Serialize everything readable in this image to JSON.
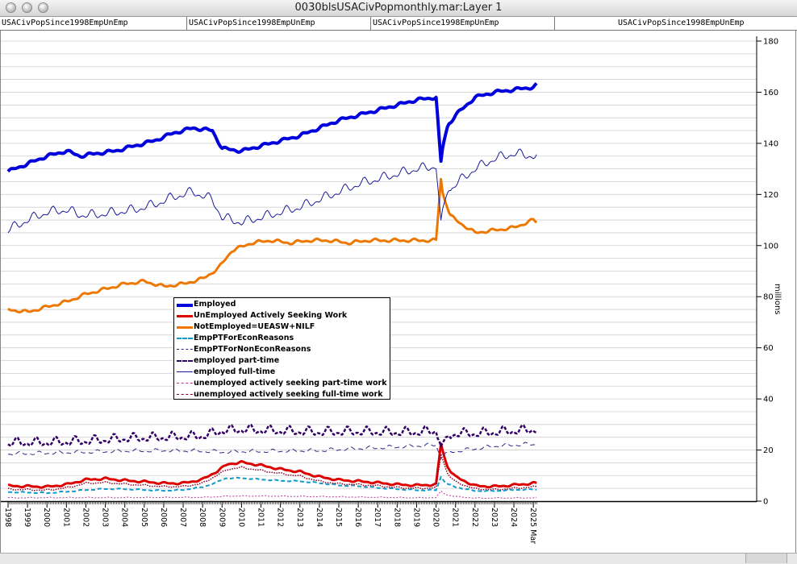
{
  "window": {
    "title": "0030blsUSACivPopmonthly.mar:Layer 1"
  },
  "tabs": [
    "USACivPopSince1998EmpUnEmp",
    "USACivPopSince1998EmpUnEmp",
    "USACivPopSince1998EmpUnEmp",
    "USACivPopSince1998EmpUnEmp"
  ],
  "chart_data": {
    "type": "line",
    "ylabel": "millions",
    "ylim": [
      0,
      180
    ],
    "yticks": [
      0,
      20,
      40,
      60,
      80,
      100,
      120,
      140,
      160,
      180
    ],
    "xlim": [
      1998.0,
      2025.2
    ],
    "xtick_labels": [
      "1998",
      "1999",
      "2000",
      "2001",
      "2002",
      "2003",
      "2004",
      "2005",
      "2006",
      "2007",
      "2008",
      "2009",
      "2010",
      "2011",
      "2012",
      "2013",
      "2014",
      "2015",
      "2016",
      "2017",
      "2018",
      "2019",
      "2020",
      "2021",
      "2022",
      "2023",
      "2024",
      "2025 Mar"
    ],
    "grid": true,
    "legend_position": "center-left",
    "series": [
      {
        "name": "Employed",
        "color": "#0000dd",
        "width": 4,
        "dash": "",
        "seasonal": 0.6,
        "x": [
          1998.0,
          1999.0,
          2000.0,
          2001.0,
          2001.7,
          2002.5,
          2003.5,
          2004.5,
          2005.5,
          2006.5,
          2007.5,
          2008.5,
          2009.0,
          2010.0,
          2011.0,
          2012.0,
          2013.0,
          2014.0,
          2015.0,
          2016.0,
          2017.0,
          2018.0,
          2019.0,
          2020.0,
          2020.25,
          2020.35,
          2020.6,
          2021.0,
          2022.0,
          2023.0,
          2024.0,
          2025.0,
          2025.2
        ],
        "y": [
          129,
          132,
          135,
          137,
          135,
          136,
          137,
          139,
          141,
          144,
          146,
          145,
          138,
          137,
          139,
          141,
          143,
          146,
          149,
          151,
          153,
          155,
          157,
          158,
          133,
          139,
          147,
          151,
          158,
          160,
          161,
          162,
          163
        ]
      },
      {
        "name": "UnEmployed Actively Seeking Work",
        "color": "#dd0000",
        "width": 3,
        "dash": "",
        "seasonal": 0.4,
        "x": [
          1998.0,
          2000.0,
          2001.0,
          2002.0,
          2003.0,
          2004.0,
          2005.0,
          2006.0,
          2007.0,
          2008.0,
          2008.7,
          2009.3,
          2010.0,
          2011.0,
          2012.0,
          2013.0,
          2014.0,
          2015.0,
          2016.0,
          2017.0,
          2018.0,
          2019.0,
          2020.0,
          2020.25,
          2020.4,
          2020.6,
          2021.0,
          2022.0,
          2023.0,
          2024.0,
          2025.0,
          2025.2
        ],
        "y": [
          6,
          5.6,
          6.5,
          8.4,
          8.8,
          8.1,
          7.6,
          7,
          7,
          8.5,
          11.5,
          14.5,
          15.2,
          14,
          12.5,
          11.5,
          9.5,
          8.3,
          7.8,
          7.2,
          6.5,
          6.2,
          6.5,
          22.5,
          18,
          13,
          9.5,
          6,
          5.7,
          6.3,
          7,
          7
        ]
      },
      {
        "name": "NotEmployed=UEASW+NILF",
        "color": "#ee7700",
        "width": 3,
        "dash": "",
        "seasonal": 0.6,
        "x": [
          1998.0,
          1999.0,
          2000.0,
          2001.0,
          2002.0,
          2003.0,
          2004.0,
          2005.0,
          2006.0,
          2007.0,
          2008.0,
          2008.8,
          2009.5,
          2010.5,
          2011.5,
          2012.5,
          2013.5,
          2014.5,
          2015.5,
          2016.5,
          2017.5,
          2018.5,
          2019.5,
          2020.0,
          2020.25,
          2020.35,
          2020.7,
          2021.0,
          2022.0,
          2023.0,
          2024.0,
          2025.0,
          2025.2
        ],
        "y": [
          75,
          74,
          76,
          78,
          81,
          83,
          85,
          86,
          84,
          85,
          87,
          91,
          98,
          101,
          102,
          101,
          102,
          102,
          101,
          102,
          102,
          102,
          102,
          102,
          126,
          120,
          112,
          110,
          105,
          106,
          107,
          110,
          109
        ]
      },
      {
        "name": "EmpPTForEconReasons",
        "color": "#1199cc",
        "width": 2,
        "dash": "5,3",
        "seasonal": 0.2,
        "x": [
          1998.0,
          2000.0,
          2001.0,
          2002.0,
          2003.0,
          2004.0,
          2005.0,
          2006.0,
          2007.0,
          2008.0,
          2008.6,
          2009.2,
          2010.0,
          2011.0,
          2012.0,
          2013.0,
          2014.0,
          2015.0,
          2016.0,
          2017.0,
          2018.0,
          2019.0,
          2020.0,
          2020.25,
          2020.5,
          2021.0,
          2022.0,
          2023.0,
          2024.0,
          2025.0,
          2025.2
        ],
        "y": [
          3.6,
          3.2,
          3.7,
          4.4,
          4.8,
          4.7,
          4.4,
          4.1,
          4.4,
          5.5,
          7,
          9,
          9,
          8.5,
          8,
          7.8,
          7.1,
          6.2,
          5.9,
          5.2,
          4.7,
          4.3,
          4.3,
          9.5,
          7,
          5.5,
          4,
          4,
          4.4,
          4.6,
          4.5
        ]
      },
      {
        "name": "EmpPTForNonEconReasons",
        "color": "#2a2a88",
        "width": 1,
        "dash": "6,4",
        "seasonal": 0.7,
        "x": [
          1998.0,
          2000.0,
          2002.0,
          2004.0,
          2006.0,
          2008.0,
          2009.0,
          2010.0,
          2012.0,
          2014.0,
          2016.0,
          2018.0,
          2019.0,
          2020.0,
          2020.25,
          2020.5,
          2021.0,
          2022.0,
          2023.0,
          2024.0,
          2025.0,
          2025.2
        ],
        "y": [
          18.5,
          18.8,
          19.2,
          19.6,
          19.8,
          19.6,
          19.2,
          19.4,
          19.6,
          19.8,
          20.6,
          21.2,
          21.6,
          22,
          16.5,
          19,
          19.5,
          20.5,
          21.5,
          22,
          22.3,
          22
        ]
      },
      {
        "name": "employed part-time",
        "color": "#330066",
        "width": 2.5,
        "dash": "4,2",
        "seasonal": 1.8,
        "x": [
          1998.0,
          2000.0,
          2002.0,
          2004.0,
          2006.0,
          2008.0,
          2009.0,
          2010.0,
          2012.0,
          2014.0,
          2016.0,
          2018.0,
          2019.0,
          2020.0,
          2020.25,
          2020.5,
          2021.0,
          2022.0,
          2023.0,
          2024.0,
          2025.0,
          2025.2
        ],
        "y": [
          22.8,
          23,
          23.5,
          24.5,
          25,
          25.5,
          27.5,
          28,
          27.5,
          27,
          27.2,
          27,
          27,
          27.5,
          21.5,
          25,
          26.5,
          26.5,
          27,
          27.5,
          28,
          28
        ]
      },
      {
        "name": "employed full-time",
        "color": "#1a1a99",
        "width": 1,
        "dash": "",
        "seasonal": 1.8,
        "x": [
          1998.0,
          1999.0,
          2000.0,
          2001.0,
          2001.7,
          2002.5,
          2003.5,
          2004.5,
          2005.5,
          2006.5,
          2007.5,
          2008.5,
          2009.0,
          2010.0,
          2011.0,
          2012.0,
          2013.0,
          2014.0,
          2015.0,
          2016.0,
          2017.0,
          2018.0,
          2019.0,
          2020.0,
          2020.25,
          2020.35,
          2020.6,
          2021.0,
          2022.0,
          2023.0,
          2024.0,
          2025.0,
          2025.2
        ],
        "y": [
          106,
          110,
          113,
          114,
          112,
          112,
          113,
          114,
          116,
          119,
          121,
          118,
          111,
          109,
          111,
          113,
          115,
          118,
          121,
          124,
          126,
          128,
          130,
          131,
          110,
          115,
          121,
          124,
          130,
          134,
          136,
          135,
          135
        ]
      },
      {
        "name": "unemployed actively seeking part-time work",
        "color": "#bb3399",
        "width": 1,
        "dash": "2,2",
        "seasonal": 0.15,
        "x": [
          1998.0,
          2002.0,
          2004.0,
          2008.0,
          2009.5,
          2011.0,
          2014.0,
          2017.0,
          2019.0,
          2020.0,
          2020.25,
          2020.5,
          2021.0,
          2022.0,
          2025.2
        ],
        "y": [
          1.3,
          1.4,
          1.4,
          1.5,
          2,
          2,
          1.8,
          1.5,
          1.3,
          1.4,
          4,
          2.5,
          1.8,
          1.2,
          1.3
        ]
      },
      {
        "name": "unemployed actively seeking full-time work",
        "color": "#880022",
        "width": 1.5,
        "dash": "1.5,1.5",
        "seasonal": 0.3,
        "x": [
          1998.0,
          2000.0,
          2001.0,
          2002.0,
          2003.0,
          2004.0,
          2005.0,
          2006.0,
          2007.0,
          2008.0,
          2008.7,
          2009.3,
          2010.0,
          2011.0,
          2012.0,
          2013.0,
          2014.0,
          2015.0,
          2016.0,
          2017.0,
          2018.0,
          2019.0,
          2020.0,
          2020.25,
          2020.4,
          2020.6,
          2021.0,
          2022.0,
          2023.0,
          2024.0,
          2025.0,
          2025.2
        ],
        "y": [
          4.7,
          4.3,
          5.2,
          7,
          7.3,
          6.7,
          6.2,
          5.7,
          5.7,
          7,
          10,
          12.5,
          13.2,
          12,
          10.8,
          9.8,
          7.8,
          6.8,
          6.5,
          6,
          5.3,
          5,
          5.2,
          18.5,
          15,
          10.5,
          7.5,
          4.8,
          4.5,
          5,
          5.6,
          5.6
        ]
      }
    ]
  }
}
